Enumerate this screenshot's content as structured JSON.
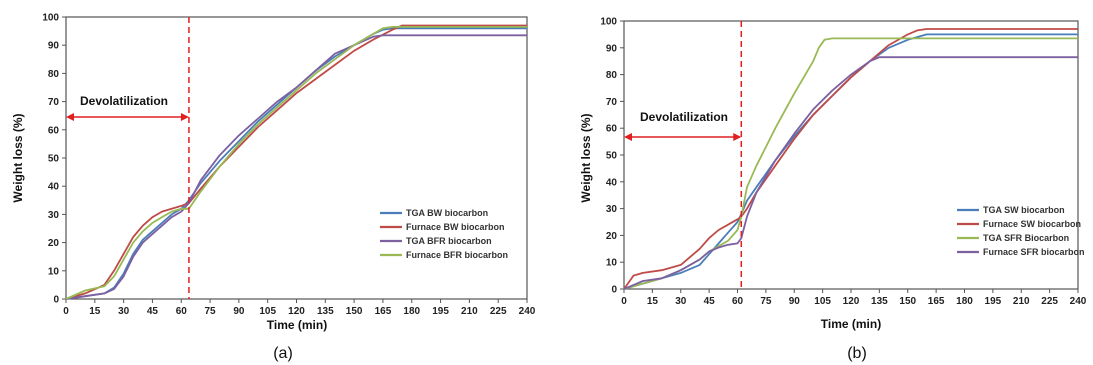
{
  "panels": [
    {
      "caption": "(a)",
      "annotation": "Devolatilization",
      "chart_data": {
        "type": "line",
        "xlabel": "Time (min)",
        "ylabel": "Weight loss (%)",
        "xlim": [
          0,
          240
        ],
        "ylim": [
          0,
          100
        ],
        "xticks": [
          0,
          15,
          30,
          45,
          60,
          75,
          90,
          105,
          120,
          135,
          150,
          165,
          180,
          195,
          210,
          225,
          240
        ],
        "yticks": [
          0,
          10,
          20,
          30,
          40,
          50,
          60,
          70,
          80,
          90,
          100
        ],
        "grid": false,
        "legend_position": "lower-right",
        "marker_line_x": 64,
        "series": [
          {
            "name": "TGA BW biocarbon",
            "color": "#4a7ebb",
            "x": [
              0,
              10,
              20,
              25,
              30,
              35,
              40,
              45,
              50,
              55,
              60,
              64,
              70,
              80,
              90,
              100,
              110,
              120,
              130,
              140,
              150,
              160,
              165,
              170,
              180,
              190,
              200,
              210,
              220,
              230,
              240
            ],
            "y": [
              0,
              1,
              2,
              4,
              9,
              16,
              21,
              24,
              27,
              30,
              32,
              35,
              41,
              49,
              56,
              63,
              69,
              75,
              81,
              86,
              90,
              94,
              95.5,
              96,
              96,
              96,
              96,
              96,
              96,
              96,
              96
            ]
          },
          {
            "name": "Furnace BW biocarbon",
            "color": "#be4b48",
            "x": [
              0,
              10,
              20,
              25,
              30,
              35,
              40,
              45,
              50,
              55,
              60,
              64,
              70,
              80,
              90,
              100,
              110,
              120,
              130,
              140,
              150,
              160,
              170,
              175,
              180,
              190,
              200,
              210,
              220,
              230,
              240
            ],
            "y": [
              0,
              2,
              5,
              10,
              16,
              22,
              26,
              29,
              31,
              32,
              33,
              34,
              39,
              47,
              54,
              61,
              67,
              73,
              78,
              83,
              88,
              92,
              95.5,
              97,
              97,
              97,
              97,
              97,
              97,
              97,
              97
            ]
          },
          {
            "name": "TGA BFR biocarbon",
            "color": "#7d60a0",
            "x": [
              0,
              10,
              20,
              25,
              30,
              35,
              40,
              45,
              50,
              55,
              60,
              64,
              70,
              80,
              90,
              100,
              110,
              120,
              130,
              140,
              150,
              160,
              165,
              170,
              180,
              190,
              200,
              210,
              220,
              230,
              240
            ],
            "y": [
              0,
              1,
              2,
              3.5,
              8,
              15,
              20,
              23,
              26,
              29,
              31,
              34,
              42,
              51,
              58,
              64,
              70,
              75,
              81,
              87,
              90,
              93,
              93.5,
              93.5,
              93.5,
              93.5,
              93.5,
              93.5,
              93.5,
              93.5,
              93.5
            ]
          },
          {
            "name": "Furnace BFR biocarbon",
            "color": "#98b954",
            "x": [
              0,
              10,
              20,
              25,
              30,
              35,
              40,
              45,
              50,
              55,
              60,
              64,
              70,
              80,
              90,
              100,
              110,
              120,
              130,
              140,
              150,
              160,
              165,
              170,
              180,
              190,
              200,
              210,
              220,
              230,
              240
            ],
            "y": [
              0,
              3,
              4.5,
              8,
              14,
              20,
              24,
              27,
              29,
              31,
              32,
              32,
              38,
              47,
              55,
              62,
              68,
              74,
              80,
              85,
              90,
              94,
              96,
              96.5,
              96.5,
              96.5,
              96.5,
              96.5,
              96.5,
              96.5,
              96.5
            ]
          }
        ]
      }
    },
    {
      "caption": "(b)",
      "annotation": "Devolatilization",
      "chart_data": {
        "type": "line",
        "xlabel": "Time (min)",
        "ylabel": "Weight loss (%)",
        "xlim": [
          0,
          240
        ],
        "ylim": [
          0,
          100
        ],
        "xticks": [
          0,
          15,
          30,
          45,
          60,
          75,
          90,
          105,
          120,
          135,
          150,
          165,
          180,
          195,
          210,
          225,
          240
        ],
        "yticks": [
          0,
          10,
          20,
          30,
          40,
          50,
          60,
          70,
          80,
          90,
          100
        ],
        "grid": false,
        "legend_position": "lower-right",
        "marker_line_x": 62,
        "series": [
          {
            "name": "TGA SW biocarbon",
            "color": "#4a7ebb",
            "x": [
              0,
              10,
              20,
              30,
              40,
              45,
              50,
              55,
              60,
              62,
              65,
              70,
              80,
              90,
              100,
              110,
              120,
              130,
              140,
              150,
              160,
              165,
              170,
              180,
              190,
              200,
              210,
              220,
              230,
              240
            ],
            "y": [
              0,
              2,
              4,
              6,
              9,
              13,
              17,
              21,
              25,
              28,
              33,
              38,
              48,
              57,
              65,
              72,
              79,
              85,
              90,
              93,
              95,
              95,
              95,
              95,
              95,
              95,
              95,
              95,
              95,
              95
            ]
          },
          {
            "name": "Furnace SW biocarbon",
            "color": "#be4b48",
            "x": [
              0,
              5,
              10,
              20,
              30,
              40,
              45,
              50,
              55,
              60,
              62,
              65,
              70,
              80,
              90,
              100,
              110,
              120,
              130,
              140,
              150,
              155,
              160,
              165,
              170,
              180,
              190,
              200,
              210,
              220,
              230,
              240
            ],
            "y": [
              0,
              5,
              6,
              7,
              9,
              15,
              19,
              22,
              24,
              26,
              27,
              30,
              36,
              46,
              56,
              65,
              72,
              79,
              85,
              91,
              95,
              96.5,
              97,
              97,
              97,
              97,
              97,
              97,
              97,
              97,
              97,
              97
            ]
          },
          {
            "name": "TGA SFR Biocarbon",
            "color": "#98b954",
            "x": [
              0,
              10,
              20,
              30,
              40,
              45,
              50,
              55,
              60,
              62,
              65,
              70,
              75,
              80,
              90,
              100,
              103,
              106,
              110,
              120,
              130,
              140,
              150,
              160,
              170,
              180,
              190,
              200,
              210,
              220,
              230,
              240
            ],
            "y": [
              0,
              2,
              4,
              7,
              11,
              14,
              16,
              18,
              22,
              27,
              38,
              46,
              53,
              60,
              73,
              85,
              90,
              93,
              93.5,
              93.5,
              93.5,
              93.5,
              93.5,
              93.5,
              93.5,
              93.5,
              93.5,
              93.5,
              93.5,
              93.5,
              93.5,
              93.5
            ]
          },
          {
            "name": "Furnace SFR biocarbon",
            "color": "#7d60a0",
            "x": [
              0,
              10,
              20,
              30,
              40,
              45,
              50,
              55,
              60,
              62,
              65,
              70,
              80,
              90,
              100,
              110,
              120,
              130,
              135,
              140,
              150,
              160,
              170,
              180,
              190,
              200,
              210,
              220,
              230,
              240
            ],
            "y": [
              0,
              3,
              4,
              7,
              11,
              14,
              15.5,
              16.5,
              17,
              19,
              27,
              36,
              48,
              58,
              67,
              74,
              80,
              85,
              86.5,
              86.5,
              86.5,
              86.5,
              86.5,
              86.5,
              86.5,
              86.5,
              86.5,
              86.5,
              86.5,
              86.5
            ]
          }
        ]
      }
    }
  ]
}
